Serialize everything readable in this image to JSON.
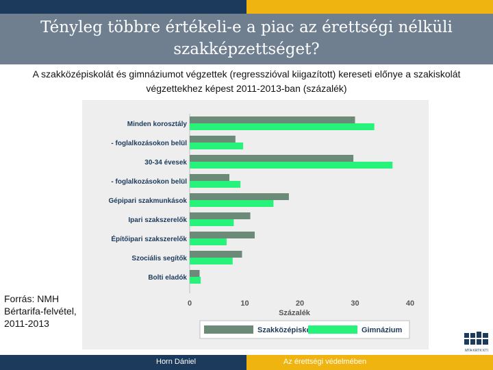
{
  "header": {
    "title": "Tényleg többre értékeli-e a piac az érettségi nélküli szakképzettséget?",
    "subtitle": "A szakközépiskolát és gimnáziumot végzettek (regresszióval kiigazított) kereseti előnye a szakiskolát végzettekhez képest 2011-2013-ban (százalék)"
  },
  "source": "Forrás: NMH Bértarifa-felvétel, 2011-2013",
  "footer": {
    "author": "Horn Dániel",
    "slogan": "Az érettségi védelmében"
  },
  "logo": {
    "label": "MTA KRTK KTI"
  },
  "colors": {
    "navy": "#1c3a5b",
    "gold": "#efb40f",
    "title_band": "#6f7f8f",
    "series_szakkozep": "#6b8a78",
    "series_gimnazium": "#27f27a"
  },
  "chart_data": {
    "type": "bar",
    "orientation": "horizontal",
    "categories": [
      "Minden korosztály",
      "- foglalkozásokon belül",
      "30-34 évesek",
      "- foglalkozásokon belül",
      "Gépipari szakmunkások",
      "Ipari szakszerelők",
      "Építőipari szakszerelők",
      "Szociális segítők",
      "Bolti eladók"
    ],
    "series": [
      {
        "name": "Szakközépiskola",
        "values": [
          30,
          8.3,
          29.7,
          7.2,
          18,
          11,
          11.8,
          9.5,
          1.8
        ]
      },
      {
        "name": "Gimnázium",
        "values": [
          33.5,
          9.7,
          36.8,
          9.2,
          15.2,
          8,
          6.7,
          7.8,
          2
        ]
      }
    ],
    "xlabel": "Százalék",
    "xticks": [
      0,
      10,
      20,
      30,
      40
    ],
    "xlim": [
      0,
      40
    ],
    "grid": false,
    "legend_position": "bottom"
  }
}
